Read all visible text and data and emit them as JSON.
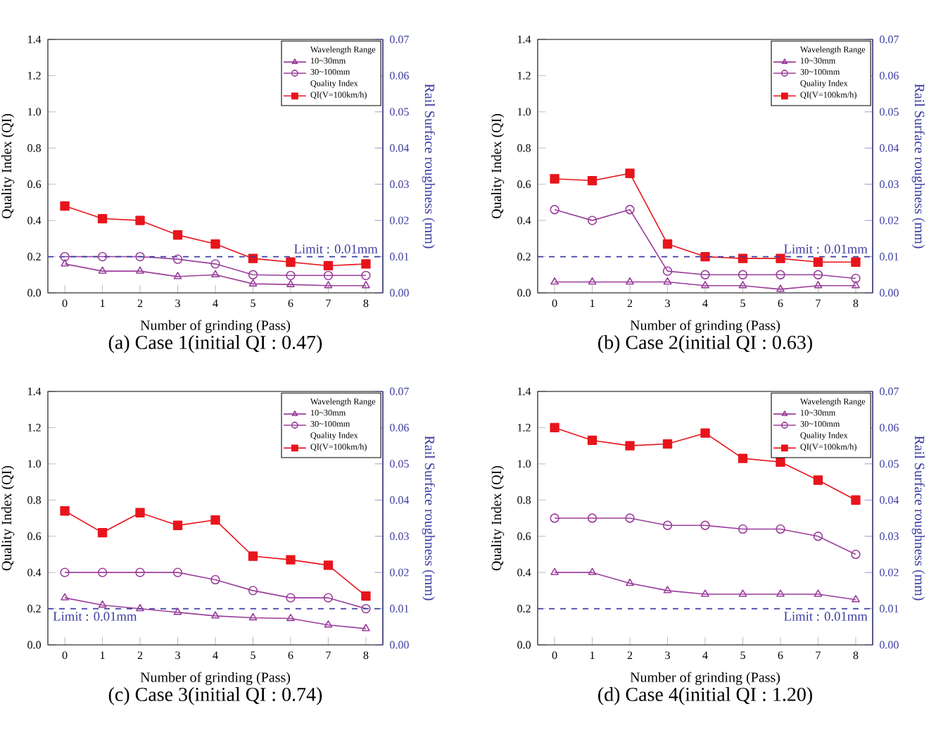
{
  "chart_data": [
    {
      "type": "line",
      "title": "(a) Case 1(initial QI : 0.47)",
      "xlabel": "Number of grinding (Pass)",
      "ylabel": "Quality Index (QI)",
      "y2label": "Rail Surface roughness (mm)",
      "x": [
        0,
        1,
        2,
        3,
        4,
        5,
        6,
        7,
        8
      ],
      "xlim": [
        -0.45,
        8.45
      ],
      "xticks": [
        0,
        1,
        2,
        3,
        4,
        5,
        6,
        7,
        8
      ],
      "ylim": [
        0,
        1.4
      ],
      "yticks": [
        {
          "value": 0,
          "label": "0.0"
        },
        {
          "value": 0.2,
          "label": "0.2"
        },
        {
          "value": 0.4,
          "label": "0.4"
        },
        {
          "value": 0.6,
          "label": "0.6"
        },
        {
          "value": 0.8,
          "label": "0.8"
        },
        {
          "value": 1.0,
          "label": "1.0"
        },
        {
          "value": 1.2,
          "label": "1.2"
        },
        {
          "value": 1.4,
          "label": "1.4"
        }
      ],
      "y2lim": [
        0,
        0.07
      ],
      "y2ticks": [
        {
          "value": 0,
          "label": "0.00"
        },
        {
          "value": 0.01,
          "label": "0.01"
        },
        {
          "value": 0.02,
          "label": "0.02"
        },
        {
          "value": 0.03,
          "label": "0.03"
        },
        {
          "value": 0.04,
          "label": "0.04"
        },
        {
          "value": 0.05,
          "label": "0.05"
        },
        {
          "value": 0.06,
          "label": "0.06"
        },
        {
          "value": 0.07,
          "label": "0.07"
        }
      ],
      "legend": "top right",
      "legend_title": "Wavelength Range",
      "annotations": [
        "Quality Index"
      ],
      "ref_lines": [
        {
          "axis": "y2",
          "value": 0.01,
          "label": "Limit : 0.01mm",
          "color": "#3c3ca0",
          "line_style": "dashed"
        }
      ],
      "series": [
        {
          "name": "10~30mm",
          "color": "#9b3f9b",
          "marker": "triangle",
          "axis": "y2",
          "values": [
            0.008,
            0.006,
            0.006,
            0.0045,
            0.005,
            0.0025,
            0.0023,
            0.002,
            0.002
          ]
        },
        {
          "name": "30~100mm",
          "color": "#9b3f9b",
          "marker": "circle",
          "axis": "y2",
          "values": [
            0.01,
            0.01,
            0.01,
            0.0093,
            0.008,
            0.005,
            0.0048,
            0.0048,
            0.0048
          ]
        },
        {
          "name": "QI(V=100km/h)",
          "color": "#e8141c",
          "marker": "square",
          "values": [
            0.48,
            0.41,
            0.4,
            0.32,
            0.27,
            0.19,
            0.17,
            0.15,
            0.16
          ]
        }
      ]
    },
    {
      "type": "line",
      "title": "(b) Case 2(initial QI : 0.63)",
      "xlabel": "Number of grinding (Pass)",
      "ylabel": "Quality Index (QI)",
      "y2label": "Rail Surface roughness (mm)",
      "x": [
        0,
        1,
        2,
        3,
        4,
        5,
        6,
        7,
        8
      ],
      "xlim": [
        -0.45,
        8.45
      ],
      "xticks": [
        0,
        1,
        2,
        3,
        4,
        5,
        6,
        7,
        8
      ],
      "ylim": [
        0,
        1.4
      ],
      "yticks": [
        {
          "value": 0,
          "label": "0.0"
        },
        {
          "value": 0.2,
          "label": "0.2"
        },
        {
          "value": 0.4,
          "label": "0.4"
        },
        {
          "value": 0.6,
          "label": "0.6"
        },
        {
          "value": 0.8,
          "label": "0.8"
        },
        {
          "value": 1.0,
          "label": "1.0"
        },
        {
          "value": 1.2,
          "label": "1.2"
        },
        {
          "value": 1.4,
          "label": "1.4"
        }
      ],
      "y2lim": [
        0,
        0.07
      ],
      "y2ticks": [
        {
          "value": 0,
          "label": "0.00"
        },
        {
          "value": 0.01,
          "label": "0.01"
        },
        {
          "value": 0.02,
          "label": "0.02"
        },
        {
          "value": 0.03,
          "label": "0.03"
        },
        {
          "value": 0.04,
          "label": "0.04"
        },
        {
          "value": 0.05,
          "label": "0.05"
        },
        {
          "value": 0.06,
          "label": "0.06"
        },
        {
          "value": 0.07,
          "label": "0.07"
        }
      ],
      "legend": "top right",
      "legend_title": "Wavelength Range",
      "annotations": [
        "Quality Index"
      ],
      "ref_lines": [
        {
          "axis": "y2",
          "value": 0.01,
          "label": "Limit : 0.01mm",
          "color": "#3c3ca0",
          "line_style": "dashed"
        }
      ],
      "series": [
        {
          "name": "10~30mm",
          "color": "#9b3f9b",
          "marker": "triangle",
          "axis": "y2",
          "values": [
            0.003,
            0.003,
            0.003,
            0.003,
            0.002,
            0.002,
            0.001,
            0.002,
            0.002
          ]
        },
        {
          "name": "30~100mm",
          "color": "#9b3f9b",
          "marker": "circle",
          "axis": "y2",
          "values": [
            0.023,
            0.02,
            0.023,
            0.006,
            0.005,
            0.005,
            0.005,
            0.005,
            0.004
          ]
        },
        {
          "name": "QI(V=100km/h)",
          "color": "#e8141c",
          "marker": "square",
          "values": [
            0.63,
            0.62,
            0.66,
            0.27,
            0.2,
            0.19,
            0.19,
            0.17,
            0.17
          ]
        }
      ]
    },
    {
      "type": "line",
      "title": "(c) Case 3(initial QI : 0.74)",
      "xlabel": "Number of grinding (Pass)",
      "ylabel": "Quality Index (QI)",
      "y2label": "Rail Surface roughness (mm)",
      "x": [
        0,
        1,
        2,
        3,
        4,
        5,
        6,
        7,
        8
      ],
      "xlim": [
        -0.45,
        8.45
      ],
      "xticks": [
        0,
        1,
        2,
        3,
        4,
        5,
        6,
        7,
        8
      ],
      "ylim": [
        0,
        1.4
      ],
      "yticks": [
        {
          "value": 0,
          "label": "0.0"
        },
        {
          "value": 0.2,
          "label": "0.2"
        },
        {
          "value": 0.4,
          "label": "0.4"
        },
        {
          "value": 0.6,
          "label": "0.6"
        },
        {
          "value": 0.8,
          "label": "0.8"
        },
        {
          "value": 1.0,
          "label": "1.0"
        },
        {
          "value": 1.2,
          "label": "1.2"
        },
        {
          "value": 1.4,
          "label": "1.4"
        }
      ],
      "y2lim": [
        0,
        0.07
      ],
      "y2ticks": [
        {
          "value": 0,
          "label": "0.00"
        },
        {
          "value": 0.01,
          "label": "0.01"
        },
        {
          "value": 0.02,
          "label": "0.02"
        },
        {
          "value": 0.03,
          "label": "0.03"
        },
        {
          "value": 0.04,
          "label": "0.04"
        },
        {
          "value": 0.05,
          "label": "0.05"
        },
        {
          "value": 0.06,
          "label": "0.06"
        },
        {
          "value": 0.07,
          "label": "0.07"
        }
      ],
      "legend": "top right",
      "legend_title": "Wavelength Range",
      "annotations": [
        "Quality Index"
      ],
      "ref_lines": [
        {
          "axis": "y2",
          "value": 0.01,
          "label": "Limit : 0.01mm",
          "color": "#3c3ca0",
          "line_style": "dashed"
        }
      ],
      "series": [
        {
          "name": "10~30mm",
          "color": "#9b3f9b",
          "marker": "triangle",
          "axis": "y2",
          "values": [
            0.013,
            0.011,
            0.01,
            0.009,
            0.008,
            0.0075,
            0.0073,
            0.0055,
            0.0045
          ]
        },
        {
          "name": "30~100mm",
          "color": "#9b3f9b",
          "marker": "circle",
          "axis": "y2",
          "values": [
            0.02,
            0.02,
            0.02,
            0.02,
            0.018,
            0.015,
            0.013,
            0.013,
            0.01
          ]
        },
        {
          "name": "QI(V=100km/h)",
          "color": "#e8141c",
          "marker": "square",
          "values": [
            0.74,
            0.62,
            0.73,
            0.66,
            0.69,
            0.49,
            0.47,
            0.44,
            0.27
          ]
        }
      ]
    },
    {
      "type": "line",
      "title": "(d) Case 4(initial QI : 1.20)",
      "xlabel": "Number of grinding (Pass)",
      "ylabel": "Quality Index (QI)",
      "y2label": "Rail Surface roughness (mm)",
      "x": [
        0,
        1,
        2,
        3,
        4,
        5,
        6,
        7,
        8
      ],
      "xlim": [
        -0.45,
        8.45
      ],
      "xticks": [
        0,
        1,
        2,
        3,
        4,
        5,
        6,
        7,
        8
      ],
      "ylim": [
        0,
        1.4
      ],
      "yticks": [
        {
          "value": 0,
          "label": "0.0"
        },
        {
          "value": 0.2,
          "label": "0.2"
        },
        {
          "value": 0.4,
          "label": "0.4"
        },
        {
          "value": 0.6,
          "label": "0.6"
        },
        {
          "value": 0.8,
          "label": "0.8"
        },
        {
          "value": 1.0,
          "label": "1.0"
        },
        {
          "value": 1.2,
          "label": "1.2"
        },
        {
          "value": 1.4,
          "label": "1.4"
        }
      ],
      "y2lim": [
        0,
        0.07
      ],
      "y2ticks": [
        {
          "value": 0,
          "label": "0.00"
        },
        {
          "value": 0.01,
          "label": "0.01"
        },
        {
          "value": 0.02,
          "label": "0.02"
        },
        {
          "value": 0.03,
          "label": "0.03"
        },
        {
          "value": 0.04,
          "label": "0.04"
        },
        {
          "value": 0.05,
          "label": "0.05"
        },
        {
          "value": 0.06,
          "label": "0.06"
        },
        {
          "value": 0.07,
          "label": "0.07"
        }
      ],
      "legend": "top right",
      "legend_title": "Wavelength Range",
      "annotations": [
        "Quality Index"
      ],
      "ref_lines": [
        {
          "axis": "y2",
          "value": 0.01,
          "label": "Limit : 0.01mm",
          "color": "#3c3ca0",
          "line_style": "dashed"
        }
      ],
      "series": [
        {
          "name": "10~30mm",
          "color": "#9b3f9b",
          "marker": "triangle",
          "axis": "y2",
          "values": [
            0.02,
            0.02,
            0.017,
            0.015,
            0.014,
            0.014,
            0.014,
            0.014,
            0.0125
          ]
        },
        {
          "name": "30~100mm",
          "color": "#9b3f9b",
          "marker": "circle",
          "axis": "y2",
          "values": [
            0.035,
            0.035,
            0.035,
            0.033,
            0.033,
            0.032,
            0.032,
            0.03,
            0.025
          ]
        },
        {
          "name": "QI(V=100km/h)",
          "color": "#e8141c",
          "marker": "square",
          "values": [
            1.2,
            1.13,
            1.1,
            1.11,
            1.17,
            1.03,
            1.01,
            0.91,
            0.8
          ]
        }
      ]
    }
  ]
}
